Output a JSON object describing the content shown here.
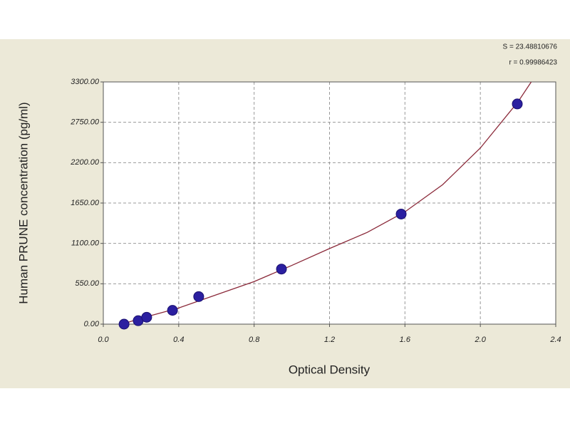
{
  "chart_data": {
    "type": "scatter",
    "x_label": "Optical Density",
    "y_label": "Human PRUNE concentration (pg/ml)",
    "annotations": [
      "S = 23.48810676",
      "r = 0.99986423"
    ],
    "x": [
      0.11,
      0.185,
      0.23,
      0.367,
      0.506,
      0.945,
      1.58,
      2.196
    ],
    "values": [
      0,
      47,
      94,
      188,
      375,
      750,
      1500,
      3000
    ],
    "color": "#2b1fa0",
    "curve": {
      "color": "#8b2a3a",
      "x": [
        0.1,
        0.2,
        0.4,
        0.6,
        0.8,
        1.0,
        1.2,
        1.4,
        1.6,
        1.8,
        2.0,
        2.2,
        2.27
      ],
      "values": [
        0,
        80,
        220,
        400,
        580,
        800,
        1030,
        1250,
        1530,
        1900,
        2400,
        3030,
        3300
      ]
    },
    "xlim": [
      0,
      2.4
    ],
    "ylim": [
      0,
      3300
    ],
    "xticks": [
      {
        "value": 0,
        "label": "0.0"
      },
      0.4,
      0.8,
      1.2,
      1.6,
      {
        "value": 2,
        "label": "2.0"
      },
      2.4
    ],
    "yticks": [
      {
        "value": 0,
        "label": "0.00"
      },
      {
        "value": 550,
        "label": "550.00"
      },
      {
        "value": 1100,
        "label": "1100.00"
      },
      {
        "value": 1650,
        "label": "1650.00"
      },
      {
        "value": 2200,
        "label": "2200.00"
      },
      {
        "value": 2750,
        "label": "2750.00"
      },
      {
        "value": 3300,
        "label": "3300.00"
      }
    ],
    "grid": true
  }
}
